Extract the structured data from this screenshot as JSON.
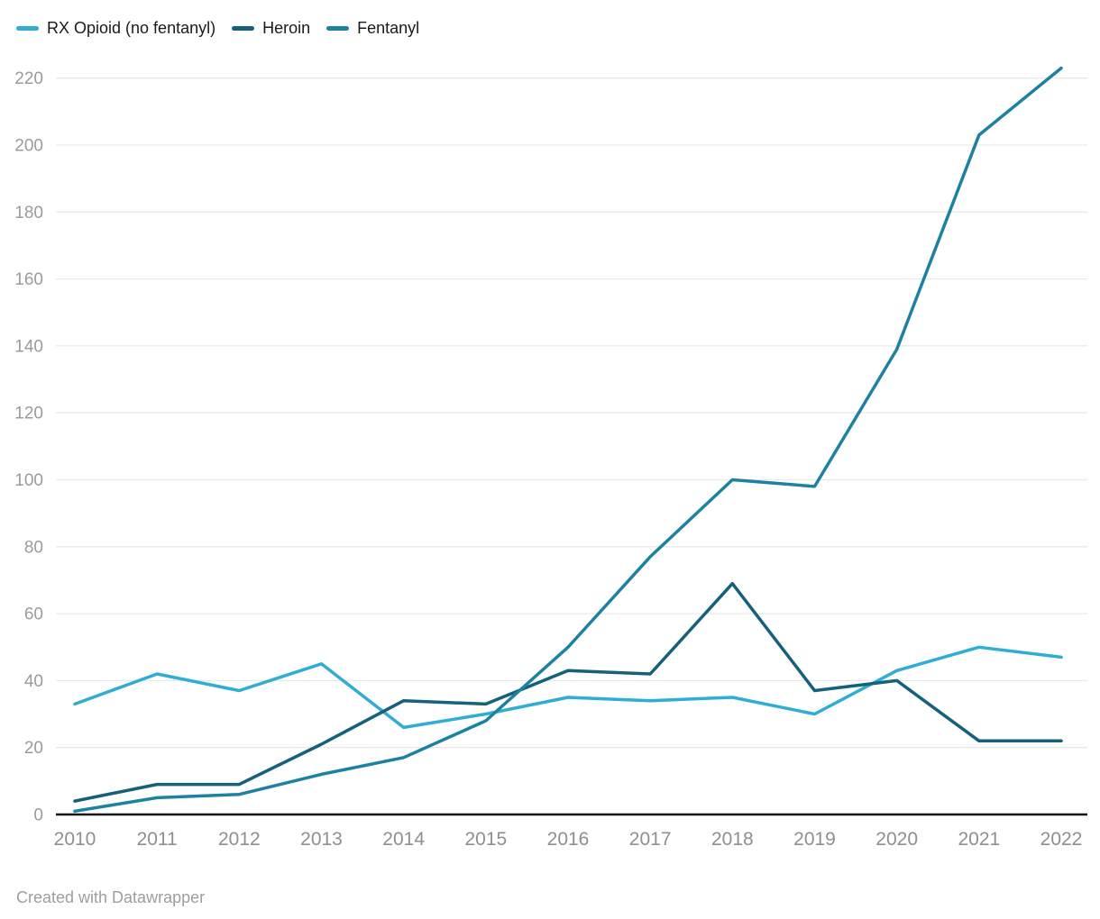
{
  "chart_data": {
    "type": "line",
    "x": [
      2010,
      2011,
      2012,
      2013,
      2014,
      2015,
      2016,
      2017,
      2018,
      2019,
      2020,
      2021,
      2022
    ],
    "series": [
      {
        "name": "RX Opioid (no fentanyl)",
        "color": "#2fadd5",
        "values": [
          33,
          42,
          37,
          45,
          26,
          30,
          35,
          34,
          35,
          30,
          43,
          50,
          47
        ]
      },
      {
        "name": "Heroin",
        "color": "#15607a",
        "values": [
          4,
          9,
          9,
          21,
          34,
          33,
          43,
          42,
          69,
          37,
          40,
          22,
          22
        ]
      },
      {
        "name": "Fentanyl",
        "color": "#1d81a2",
        "values": [
          1,
          5,
          6,
          12,
          17,
          28,
          50,
          77,
          100,
          98,
          139,
          203,
          223
        ]
      }
    ],
    "title": "",
    "xlabel": "",
    "ylabel": "",
    "ylim": [
      0,
      220
    ],
    "ytick_step": 20,
    "yticks": [
      0,
      20,
      40,
      60,
      80,
      100,
      120,
      140,
      160,
      180,
      200,
      220
    ],
    "grid": true,
    "legend_position": "top-left"
  },
  "colors": {
    "gridline": "#e9e9e9",
    "baseline": "#161616",
    "y_tick_text": "#9b9b9b",
    "x_tick_text": "#8f8f8f",
    "legend_text": "#1a1a1a",
    "background": "#ffffff"
  },
  "footer": {
    "credit": "Created with Datawrapper"
  }
}
